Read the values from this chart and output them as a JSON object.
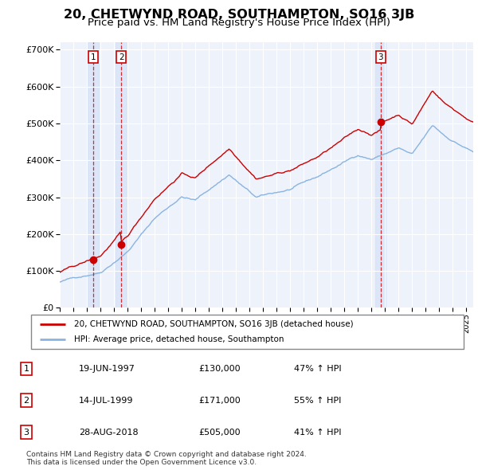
{
  "title": "20, CHETWYND ROAD, SOUTHAMPTON, SO16 3JB",
  "subtitle": "Price paid vs. HM Land Registry's House Price Index (HPI)",
  "title_fontsize": 11.5,
  "subtitle_fontsize": 9.5,
  "bg_color": "#ffffff",
  "plot_bg_color": "#eef2fb",
  "grid_color": "#ffffff",
  "sale_year_nums": [
    1997.47,
    1999.54,
    2018.66
  ],
  "sale_prices": [
    130000,
    171000,
    505000
  ],
  "sale_labels": [
    "1",
    "2",
    "3"
  ],
  "legend_line1": "20, CHETWYND ROAD, SOUTHAMPTON, SO16 3JB (detached house)",
  "legend_line2": "HPI: Average price, detached house, Southampton",
  "table_rows": [
    [
      "1",
      "19-JUN-1997",
      "£130,000",
      "47% ↑ HPI"
    ],
    [
      "2",
      "14-JUL-1999",
      "£171,000",
      "55% ↑ HPI"
    ],
    [
      "3",
      "28-AUG-2018",
      "£505,000",
      "41% ↑ HPI"
    ]
  ],
  "footer": "Contains HM Land Registry data © Crown copyright and database right 2024.\nThis data is licensed under the Open Government Licence v3.0.",
  "hpi_color": "#8ab4e0",
  "price_color": "#cc0000",
  "vline_color": "#cc0000",
  "shade_color": "#d0dff7",
  "ylim": [
    0,
    700000
  ],
  "yticks": [
    0,
    100000,
    200000,
    300000,
    400000,
    500000,
    600000,
    700000
  ],
  "xstart": 1995.0,
  "xend": 2025.5
}
